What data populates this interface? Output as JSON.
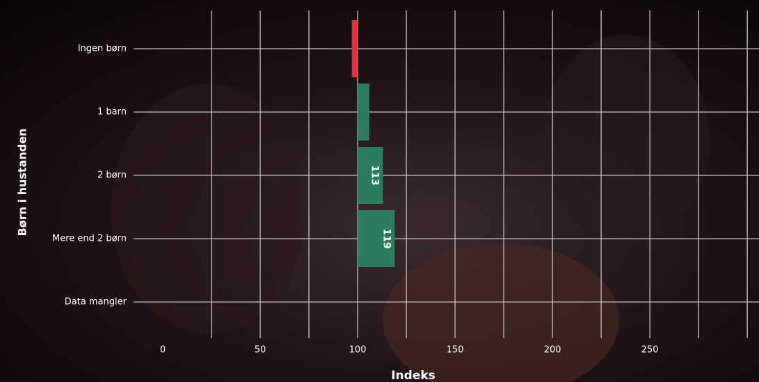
{
  "chart_data": {
    "type": "bar",
    "orientation": "horizontal",
    "categories": [
      "Ingen børn",
      "1 barn",
      "2 børn",
      "Mere end 2 børn",
      "Data mangler"
    ],
    "values": [
      97,
      106,
      113,
      119,
      100
    ],
    "value_labels": [
      null,
      null,
      "113",
      "119",
      null
    ],
    "base": 100,
    "colors": [
      "#e0323e",
      "#2b7d5c",
      "#2b7d5c",
      "#2b7d5c",
      "#2b7d5c"
    ],
    "xlim": [
      -15,
      306
    ],
    "xticks": [
      0,
      50,
      100,
      150,
      200,
      250
    ],
    "xlabel": "Indeks",
    "ylabel": "Børn i hustanden",
    "grid": true
  }
}
